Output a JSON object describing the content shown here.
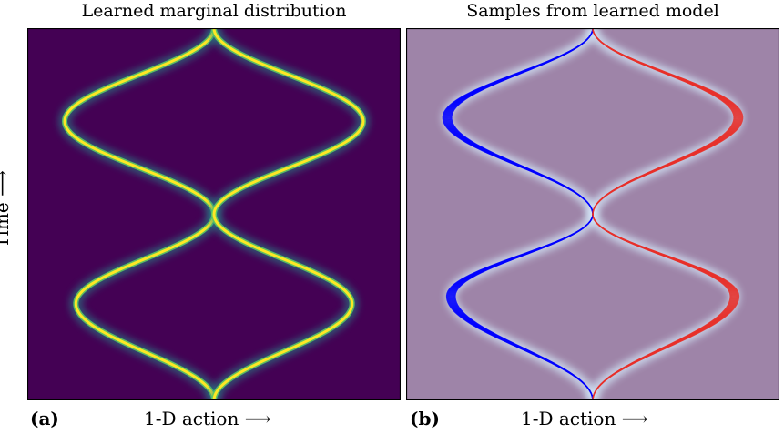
{
  "figure": {
    "ylabel": "Time ⟶",
    "panels": [
      {
        "label": "(a)",
        "title": "Learned marginal distribution",
        "xlabel": "1-D action ⟶"
      },
      {
        "label": "(b)",
        "title": "Samples from learned model",
        "xlabel": "1-D action ⟶"
      }
    ]
  },
  "chart_data": [
    {
      "type": "heatmap",
      "title": "Learned marginal distribution",
      "xlabel": "1-D action ⟶",
      "ylabel": "Time ⟶",
      "xlim": [
        -1,
        1
      ],
      "ylim": [
        0,
        1
      ],
      "colormap": "viridis",
      "background_color": "#440154",
      "peak_color": "#fde725",
      "branches": [
        {
          "time": [
            0,
            0.26,
            0.5,
            0.75,
            1.0
          ],
          "action": [
            0,
            -0.74,
            0,
            -0.8,
            0
          ]
        },
        {
          "time": [
            0,
            0.26,
            0.5,
            0.75,
            1.0
          ],
          "action": [
            0,
            0.74,
            0,
            0.8,
            0
          ]
        }
      ]
    },
    {
      "type": "line",
      "title": "Samples from learned model",
      "xlabel": "1-D action ⟶",
      "xlim": [
        -1,
        1
      ],
      "ylim": [
        0,
        1
      ],
      "background_color": "#9e84a8",
      "series": [
        {
          "color": "#0000ff",
          "count": 10,
          "time": [
            0,
            0.28,
            0.5,
            0.76,
            1.0
          ],
          "action": [
            0,
            -0.76,
            0,
            -0.78,
            0
          ]
        },
        {
          "color": "#e8302a",
          "count": 10,
          "time": [
            0,
            0.28,
            0.5,
            0.76,
            1.0
          ],
          "action": [
            0,
            0.76,
            0,
            0.78,
            0
          ]
        }
      ]
    }
  ]
}
